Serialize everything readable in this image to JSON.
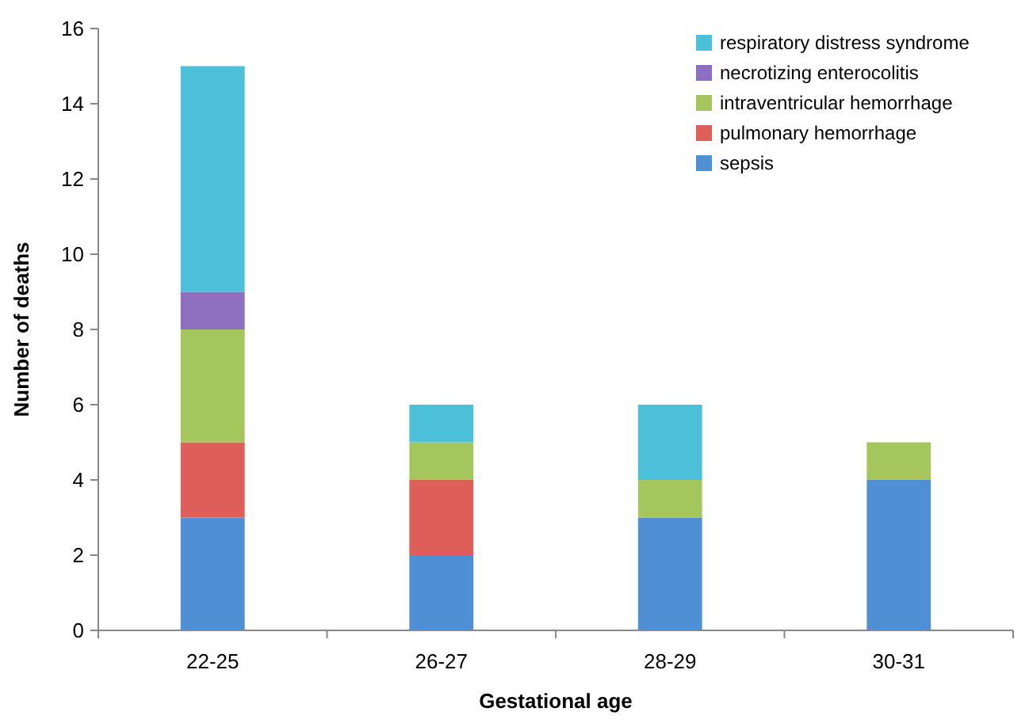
{
  "chart_data": {
    "type": "bar",
    "stacked": true,
    "xlabel": "Gestational age",
    "ylabel": "Number of deaths",
    "categories": [
      "22-25",
      "26-27",
      "28-29",
      "30-31"
    ],
    "series": [
      {
        "name": "sepsis",
        "color": "#4f8fd4",
        "values": [
          3,
          2,
          3,
          4
        ]
      },
      {
        "name": "pulmonary hemorrhage",
        "color": "#de5f5a",
        "values": [
          2,
          2,
          0,
          0
        ]
      },
      {
        "name": "intraventricular hemorrhage",
        "color": "#a4c65c",
        "values": [
          3,
          1,
          1,
          1
        ]
      },
      {
        "name": "necrotizing enterocolitis",
        "color": "#8d6fbf",
        "values": [
          1,
          0,
          0,
          0
        ]
      },
      {
        "name": "respiratory distress syndrome",
        "color": "#4cbfd9",
        "values": [
          6,
          1,
          2,
          0
        ]
      }
    ],
    "ylim": [
      0,
      16
    ],
    "yticks": [
      0,
      2,
      4,
      6,
      8,
      10,
      12,
      14,
      16
    ],
    "grid": false,
    "legend": "top right"
  }
}
